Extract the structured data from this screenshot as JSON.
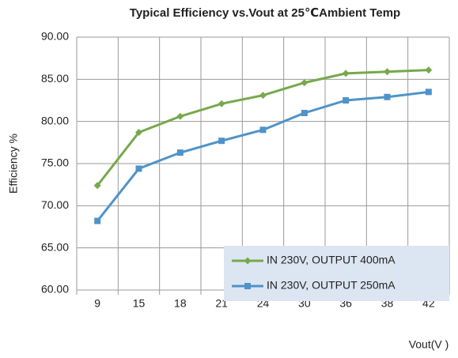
{
  "chart_data": {
    "type": "line",
    "title": "Typical Efficiency vs.Vout at 25℃Ambient Temp",
    "x_label": "Vout(V )",
    "y_label": "Efficiency %",
    "categories": [
      "9",
      "15",
      "18",
      "21",
      "24",
      "30",
      "36",
      "38",
      "42"
    ],
    "series": [
      {
        "name": "IN 230V, OUTPUT 400mA",
        "color": "#77a94b",
        "marker": "diamond",
        "values": [
          72.4,
          78.7,
          80.6,
          82.1,
          83.1,
          84.6,
          85.7,
          85.9,
          86.1
        ]
      },
      {
        "name": "IN 230V, OUTPUT 250mA",
        "color": "#4f93c9",
        "marker": "square",
        "values": [
          68.2,
          74.4,
          76.3,
          77.7,
          79.0,
          81.0,
          82.5,
          82.9,
          83.5
        ]
      }
    ],
    "ylim": [
      60,
      90
    ],
    "yticks": [
      {
        "value": 60,
        "label": "60.00"
      },
      {
        "value": 65,
        "label": "65.00"
      },
      {
        "value": 70,
        "label": "70.00"
      },
      {
        "value": 75,
        "label": "75.00"
      },
      {
        "value": 80,
        "label": "80.00"
      },
      {
        "value": 85,
        "label": "85.00"
      },
      {
        "value": 90,
        "label": "90.00"
      }
    ],
    "grid": true,
    "legend": "lower right"
  }
}
